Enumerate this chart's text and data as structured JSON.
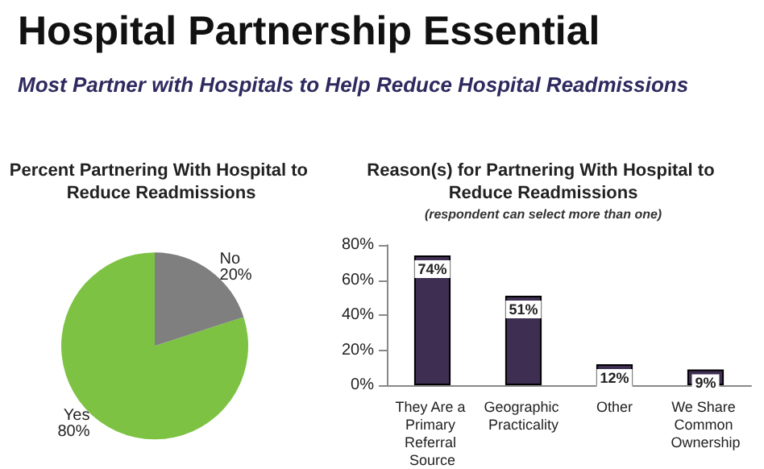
{
  "chart_data": [
    {
      "type": "other",
      "title": "Hospital Partnership Essential",
      "subtitle": "Most Partner with Hospitals to Help Reduce Hospital Readmissions"
    },
    {
      "type": "pie",
      "title": "Percent Partnering With Hospital to Reduce Readmissions",
      "categories": [
        "Yes",
        "No"
      ],
      "values": [
        80,
        20
      ],
      "colors": [
        "#7dc243",
        "#7f7f7f"
      ],
      "value_labels": [
        "80%",
        "20%"
      ]
    },
    {
      "type": "bar",
      "title": "Reason(s) for Partnering With Hospital to Reduce Readmissions",
      "subtitle": "(respondent can select more than one)",
      "categories": [
        "They Are a Primary Referral Source",
        "Geographic Practicality",
        "Other",
        "We Share Common Ownership"
      ],
      "values": [
        74,
        51,
        12,
        9
      ],
      "color": "#3e2f52",
      "value_labels": [
        "74%",
        "51%",
        "12%",
        "9%"
      ],
      "ylim": [
        0,
        80
      ],
      "yticks": [
        {
          "value": 0,
          "label": "0%"
        },
        {
          "value": 20,
          "label": "20%"
        },
        {
          "value": 40,
          "label": "40%"
        },
        {
          "value": 60,
          "label": "60%"
        },
        {
          "value": 80,
          "label": "80%"
        }
      ],
      "grid": false
    }
  ]
}
